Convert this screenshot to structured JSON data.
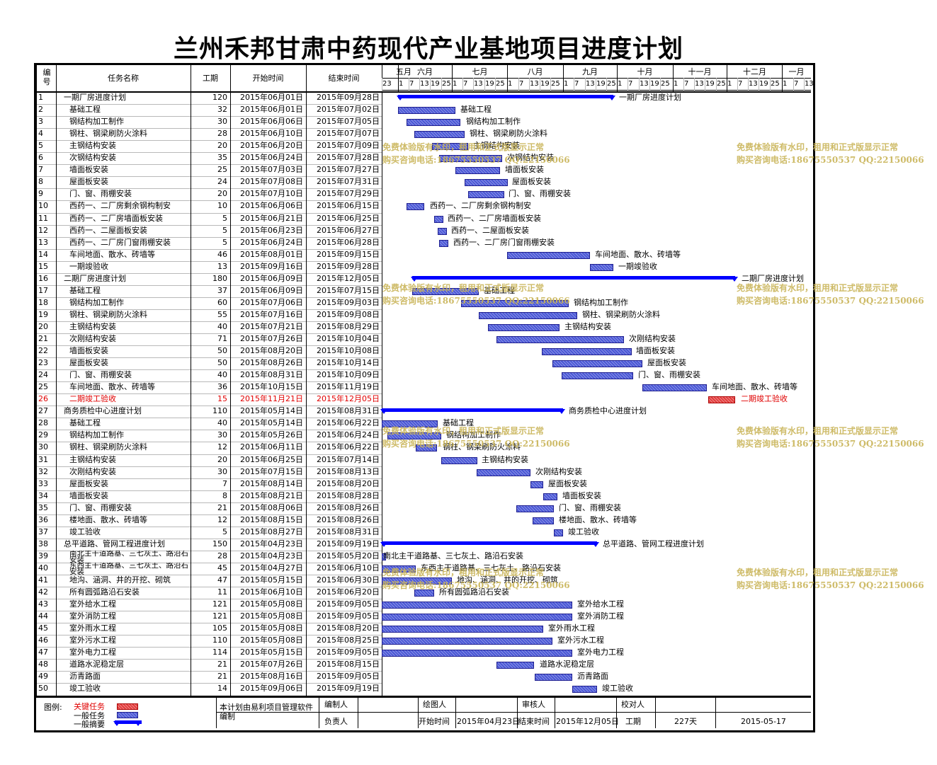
{
  "title": "兰州禾邦甘肃中药现代产业基地项目进度计划",
  "header": {
    "num": "编号",
    "name": "任务名称",
    "dur": "工期",
    "start": "开始时间",
    "end": "结束时间",
    "months": [
      "五月",
      "六月",
      "七月",
      "八月",
      "九月",
      "十月",
      "十一月",
      "十二月",
      "一月"
    ],
    "days": [
      "23",
      "1",
      "7",
      "13",
      "19",
      "25",
      "1",
      "7",
      "13",
      "19",
      "25",
      "1",
      "7",
      "13",
      "19",
      "25",
      "1",
      "7",
      "13",
      "19",
      "25",
      "1",
      "7",
      "13",
      "19",
      "25",
      "1",
      "7",
      "13",
      "19",
      "25",
      "1",
      "7",
      "13",
      "19",
      "25",
      "1",
      "7",
      "13",
      "19",
      "25",
      "1",
      "7",
      "13"
    ]
  },
  "colors": {
    "critical": "#e23b3b",
    "normal": "#4a57d6",
    "summary": "#0000ff",
    "watermark": "#c9b458",
    "critical_text": "#e00000"
  },
  "tasks": [
    {
      "id": "1",
      "name": "一期厂房进度计划",
      "dur": "120",
      "start": "2015年06月01日",
      "end": "2015年09月28日",
      "type": "summary",
      "label": "一期厂房进度计划"
    },
    {
      "id": "2",
      "name": "基础工程",
      "dur": "32",
      "start": "2015年06月01日",
      "end": "2015年07月02日",
      "type": "task",
      "label": "基础工程"
    },
    {
      "id": "3",
      "name": "钢结构加工制作",
      "dur": "30",
      "start": "2015年06月06日",
      "end": "2015年07月05日",
      "type": "task",
      "label": "钢结构加工制作"
    },
    {
      "id": "4",
      "name": "钢柱、钢梁刷防火涂料",
      "dur": "28",
      "start": "2015年06月10日",
      "end": "2015年07月07日",
      "type": "task",
      "label": "钢柱、钢梁刷防火涂料"
    },
    {
      "id": "5",
      "name": "主钢结构安装",
      "dur": "20",
      "start": "2015年06月20日",
      "end": "2015年07月09日",
      "type": "task",
      "label": "主钢结构安装"
    },
    {
      "id": "6",
      "name": "次钢结构安装",
      "dur": "35",
      "start": "2015年06月24日",
      "end": "2015年07月28日",
      "type": "task",
      "label": "次钢结构安装"
    },
    {
      "id": "7",
      "name": "墙面板安装",
      "dur": "25",
      "start": "2015年07月03日",
      "end": "2015年07月27日",
      "type": "task",
      "label": "墙面板安装"
    },
    {
      "id": "8",
      "name": "屋面板安装",
      "dur": "24",
      "start": "2015年07月08日",
      "end": "2015年07月31日",
      "type": "task",
      "label": "屋面板安装"
    },
    {
      "id": "9",
      "name": "门、窗、雨棚安装",
      "dur": "20",
      "start": "2015年07月10日",
      "end": "2015年07月29日",
      "type": "task",
      "label": "门、窗、雨棚安装"
    },
    {
      "id": "10",
      "name": "西药一、二厂房剩余钢构制安",
      "dur": "10",
      "start": "2015年06月06日",
      "end": "2015年06月15日",
      "type": "task",
      "label": "西药一、二厂房剩余钢构制安"
    },
    {
      "id": "11",
      "name": "西药一、二厂房墙面板安装",
      "dur": "5",
      "start": "2015年06月21日",
      "end": "2015年06月25日",
      "type": "task",
      "label": "西药一、二厂房墙面板安装"
    },
    {
      "id": "12",
      "name": "西药一、二屋面板安装",
      "dur": "5",
      "start": "2015年06月23日",
      "end": "2015年06月27日",
      "type": "task",
      "label": "西药一、二屋面板安装"
    },
    {
      "id": "13",
      "name": "西药一、二厂房门窗雨棚安装",
      "dur": "5",
      "start": "2015年06月24日",
      "end": "2015年06月28日",
      "type": "task",
      "label": "西药一、二厂房门窗雨棚安装"
    },
    {
      "id": "14",
      "name": "车间地面、散水、砖墙等",
      "dur": "46",
      "start": "2015年08月01日",
      "end": "2015年09月15日",
      "type": "task",
      "label": "车间地面、散水、砖墙等"
    },
    {
      "id": "15",
      "name": "一期竣验收",
      "dur": "13",
      "start": "2015年09月16日",
      "end": "2015年09月28日",
      "type": "task",
      "label": "一期竣验收"
    },
    {
      "id": "16",
      "name": "二期厂房进度计划",
      "dur": "180",
      "start": "2015年06月09日",
      "end": "2015年12月05日",
      "type": "summary",
      "label": "二期厂房进度计划"
    },
    {
      "id": "17",
      "name": "基础工程",
      "dur": "37",
      "start": "2015年06月09日",
      "end": "2015年07月15日",
      "type": "task",
      "label": "基础工程"
    },
    {
      "id": "18",
      "name": "钢结构加工制作",
      "dur": "60",
      "start": "2015年07月06日",
      "end": "2015年09月03日",
      "type": "task",
      "label": "钢结构加工制作"
    },
    {
      "id": "19",
      "name": "钢柱、钢梁刷防火涂料",
      "dur": "55",
      "start": "2015年07月16日",
      "end": "2015年09月08日",
      "type": "task",
      "label": "钢柱、钢梁刷防火涂料"
    },
    {
      "id": "20",
      "name": "主钢结构安装",
      "dur": "40",
      "start": "2015年07月21日",
      "end": "2015年08月29日",
      "type": "task",
      "label": "主钢结构安装"
    },
    {
      "id": "21",
      "name": "次刚结构安装",
      "dur": "71",
      "start": "2015年07月26日",
      "end": "2015年10月04日",
      "type": "task",
      "label": "次刚结构安装"
    },
    {
      "id": "22",
      "name": "墙面板安装",
      "dur": "50",
      "start": "2015年08月20日",
      "end": "2015年10月08日",
      "type": "task",
      "label": "墙面板安装"
    },
    {
      "id": "23",
      "name": "屋面板安装",
      "dur": "50",
      "start": "2015年08月26日",
      "end": "2015年10月14日",
      "type": "task",
      "label": "屋面板安装"
    },
    {
      "id": "24",
      "name": "门、窗、雨棚安装",
      "dur": "40",
      "start": "2015年08月31日",
      "end": "2015年10月09日",
      "type": "task",
      "label": "门、窗、雨棚安装"
    },
    {
      "id": "25",
      "name": "车间地面、散水、砖墙等",
      "dur": "36",
      "start": "2015年10月15日",
      "end": "2015年11月19日",
      "type": "task",
      "label": "车间地面、散水、砖墙等"
    },
    {
      "id": "26",
      "name": "二期竣工验收",
      "dur": "15",
      "start": "2015年11月21日",
      "end": "2015年12月05日",
      "type": "critical",
      "label": "二期竣工验收"
    },
    {
      "id": "27",
      "name": "商务质检中心进度计划",
      "dur": "110",
      "start": "2015年05月14日",
      "end": "2015年08月31日",
      "type": "summary",
      "label": "商务质检中心进度计划"
    },
    {
      "id": "28",
      "name": "基础工程",
      "dur": "40",
      "start": "2015年05月14日",
      "end": "2015年06月22日",
      "type": "task",
      "label": "基础工程"
    },
    {
      "id": "29",
      "name": "钢结构加工制作",
      "dur": "30",
      "start": "2015年05月26日",
      "end": "2015年06月24日",
      "type": "task",
      "label": "钢结构加工制作"
    },
    {
      "id": "30",
      "name": "钢柱、钢梁刷防火涂料",
      "dur": "12",
      "start": "2015年06月11日",
      "end": "2015年06月22日",
      "type": "task",
      "label": "钢柱、钢梁刷防火涂料"
    },
    {
      "id": "31",
      "name": "主钢结构安装",
      "dur": "20",
      "start": "2015年06月25日",
      "end": "2015年07月14日",
      "type": "task",
      "label": "主钢结构安装"
    },
    {
      "id": "32",
      "name": "次刚结构安装",
      "dur": "30",
      "start": "2015年07月15日",
      "end": "2015年08月13日",
      "type": "task",
      "label": "次刚结构安装"
    },
    {
      "id": "33",
      "name": "屋面板安装",
      "dur": "7",
      "start": "2015年08月14日",
      "end": "2015年08月20日",
      "type": "task",
      "label": "屋面板安装"
    },
    {
      "id": "34",
      "name": "墙面板安装",
      "dur": "8",
      "start": "2015年08月21日",
      "end": "2015年08月28日",
      "type": "task",
      "label": "墙面板安装"
    },
    {
      "id": "35",
      "name": "门、窗、雨棚安装",
      "dur": "21",
      "start": "2015年08月06日",
      "end": "2015年08月26日",
      "type": "task",
      "label": "门、窗、雨棚安装"
    },
    {
      "id": "36",
      "name": "楼地面、散水、砖墙等",
      "dur": "12",
      "start": "2015年08月15日",
      "end": "2015年08月26日",
      "type": "task",
      "label": "楼地面、散水、砖墙等"
    },
    {
      "id": "37",
      "name": "竣工验收",
      "dur": "5",
      "start": "2015年08月27日",
      "end": "2015年08月31日",
      "type": "task",
      "label": "竣工验收"
    },
    {
      "id": "38",
      "name": "总平道路、管网工程进度计划",
      "dur": "150",
      "start": "2015年04月23日",
      "end": "2015年09月19日",
      "type": "summary",
      "label": "总平道路、管网工程进度计划"
    },
    {
      "id": "39",
      "name": "南北主干道路基、三七灰土、路沿石安装",
      "dur": "28",
      "start": "2015年04月23日",
      "end": "2015年05月20日",
      "type": "task",
      "label": "南北主干道路基、三七灰土、路沿石安装"
    },
    {
      "id": "40",
      "name": "东西主干道路基、三七灰土、路沿石安装",
      "dur": "45",
      "start": "2015年04月27日",
      "end": "2015年06月10日",
      "type": "task",
      "label": "东西主干道路基、三七灰土、路沿石安装"
    },
    {
      "id": "41",
      "name": "地沟、涵洞、井的开挖、砌筑",
      "dur": "47",
      "start": "2015年05月15日",
      "end": "2015年06月30日",
      "type": "task",
      "label": "地沟、涵洞、井的开挖、砌筑"
    },
    {
      "id": "42",
      "name": "所有圆弧路沿石安装",
      "dur": "11",
      "start": "2015年06月10日",
      "end": "2015年06月20日",
      "type": "task",
      "label": "所有圆弧路沿石安装"
    },
    {
      "id": "43",
      "name": "室外给水工程",
      "dur": "121",
      "start": "2015年05月08日",
      "end": "2015年09月05日",
      "type": "task",
      "label": "室外给水工程"
    },
    {
      "id": "44",
      "name": "室外消防工程",
      "dur": "121",
      "start": "2015年05月08日",
      "end": "2015年09月05日",
      "type": "task",
      "label": "室外消防工程"
    },
    {
      "id": "45",
      "name": "室外雨水工程",
      "dur": "105",
      "start": "2015年05月08日",
      "end": "2015年08月20日",
      "type": "task",
      "label": "室外雨水工程"
    },
    {
      "id": "46",
      "name": "室外污水工程",
      "dur": "110",
      "start": "2015年05月08日",
      "end": "2015年08月25日",
      "type": "task",
      "label": "室外污水工程"
    },
    {
      "id": "47",
      "name": "室外电力工程",
      "dur": "114",
      "start": "2015年05月15日",
      "end": "2015年09月05日",
      "type": "task",
      "label": "室外电力工程"
    },
    {
      "id": "48",
      "name": "道路水泥稳定层",
      "dur": "21",
      "start": "2015年07月26日",
      "end": "2015年08月15日",
      "type": "task",
      "label": "道路水泥稳定层"
    },
    {
      "id": "49",
      "name": "沥青路面",
      "dur": "21",
      "start": "2015年08月16日",
      "end": "2015年09月05日",
      "type": "task",
      "label": "沥青路面"
    },
    {
      "id": "50",
      "name": "竣工验收",
      "dur": "14",
      "start": "2015年09月06日",
      "end": "2015年09月19日",
      "type": "task",
      "label": "竣工验收"
    }
  ],
  "legend": {
    "label": "图例:",
    "critical": "关键任务",
    "normal": "一般任务",
    "summary": "一般摘要"
  },
  "footer": {
    "note": "本计划由易利项目管理软件编制",
    "compiler": "编制人",
    "drawer": "绘图人",
    "reviewer": "审核人",
    "checker": "校对人",
    "owner": "负责人",
    "start_label": "开始时间",
    "start_value": "2015年04月23日",
    "end_label": "结束时间",
    "end_value": "2015年12月05日",
    "dur_label": "工期",
    "dur_value": "227天",
    "date_value": "2015-05-17"
  },
  "watermark": {
    "line1": "免费体验版有水印，租用和正式版显示正常",
    "line2": "购买咨询电话:18675550537 QQ:22150066"
  }
}
